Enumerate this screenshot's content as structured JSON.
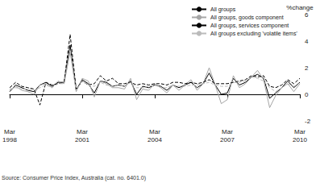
{
  "chart_data": {
    "type": "line",
    "y_label": "%change",
    "annotations": [
      "Source: Consumer Price Index, Australia (cat. no. 6401.0)"
    ],
    "categories": [
      "Mar\n1998",
      null,
      null,
      null,
      null,
      null,
      null,
      null,
      null,
      null,
      null,
      null,
      "Mar\n2001",
      null,
      null,
      null,
      null,
      null,
      null,
      null,
      null,
      null,
      null,
      null,
      "Mar\n2004",
      null,
      null,
      null,
      null,
      null,
      null,
      null,
      null,
      null,
      null,
      null,
      "Mar\n2007",
      null,
      null,
      null,
      null,
      null,
      null,
      null,
      null,
      null,
      null,
      null,
      "Mar\n2010"
    ],
    "series": [
      {
        "name": "All groups",
        "color": "#000000",
        "line_style": "solid",
        "values": [
          0.2,
          0.7,
          0.5,
          0.3,
          0.2,
          0.7,
          0.9,
          0.6,
          0.9,
          0.9,
          3.7,
          0.3,
          1.1,
          0.8,
          0.1,
          1.0,
          0.9,
          0.6,
          0.7,
          0.6,
          1.0,
          0.0,
          0.6,
          0.5,
          0.7,
          0.6,
          0.3,
          0.7,
          0.5,
          0.7,
          0.9,
          0.5,
          0.8,
          1.6,
          0.7,
          0.0,
          0.1,
          1.2,
          0.7,
          0.9,
          1.3,
          1.5,
          1.2,
          -0.3,
          0.1,
          0.5,
          1.0,
          0.5,
          0.9
        ]
      },
      {
        "name": "All groups, goods component",
        "color": "#a6a6a6",
        "line_style": "solid",
        "values": [
          0.3,
          0.6,
          0.3,
          0.2,
          0.0,
          0.7,
          0.8,
          0.5,
          1.0,
          0.8,
          3.2,
          0.2,
          1.2,
          1.0,
          -0.2,
          1.0,
          0.8,
          0.5,
          0.5,
          0.4,
          1.2,
          -0.4,
          0.4,
          0.3,
          0.8,
          0.5,
          0.1,
          0.7,
          0.3,
          0.7,
          1.1,
          0.3,
          0.8,
          2.0,
          0.7,
          -0.7,
          -0.4,
          1.4,
          0.5,
          0.8,
          1.3,
          1.8,
          1.1,
          -1.0,
          -0.1,
          0.5,
          0.8,
          0.2,
          0.8
        ]
      },
      {
        "name": "All groups, services component",
        "color": "#000000",
        "line_style": "dashed",
        "values": [
          0.5,
          0.9,
          0.6,
          0.5,
          0.4,
          -0.8,
          0.9,
          0.7,
          0.8,
          0.9,
          4.5,
          0.4,
          1.0,
          0.7,
          0.8,
          1.4,
          1.0,
          1.2,
          0.8,
          0.8,
          0.9,
          0.7,
          0.8,
          0.7,
          0.8,
          0.8,
          0.7,
          0.9,
          0.9,
          0.8,
          0.9,
          0.8,
          0.9,
          1.1,
          0.8,
          0.8,
          0.8,
          0.9,
          1.0,
          1.1,
          1.4,
          1.3,
          1.4,
          0.6,
          0.5,
          0.7,
          1.1,
          0.8,
          1.2
        ]
      },
      {
        "name": "All groups excluding 'volatile items'",
        "color": "#bbbbbb",
        "line_style": "dashed",
        "values": [
          0.4,
          0.5,
          0.4,
          0.4,
          0.3,
          0.5,
          0.7,
          0.5,
          0.8,
          0.8,
          3.3,
          0.3,
          1.0,
          0.7,
          0.6,
          0.9,
          0.7,
          0.6,
          0.7,
          0.6,
          0.9,
          0.5,
          0.5,
          0.6,
          0.7,
          0.5,
          0.5,
          0.7,
          0.6,
          0.6,
          0.7,
          0.7,
          0.8,
          0.9,
          0.7,
          0.6,
          0.6,
          0.9,
          0.9,
          1.0,
          1.3,
          1.2,
          1.0,
          0.5,
          0.2,
          0.5,
          0.8,
          0.6,
          0.9
        ]
      }
    ],
    "ylim": [
      -2,
      6
    ],
    "yticks": [
      -2,
      0,
      2,
      4,
      6
    ],
    "grid": false,
    "legend": "top-right"
  }
}
